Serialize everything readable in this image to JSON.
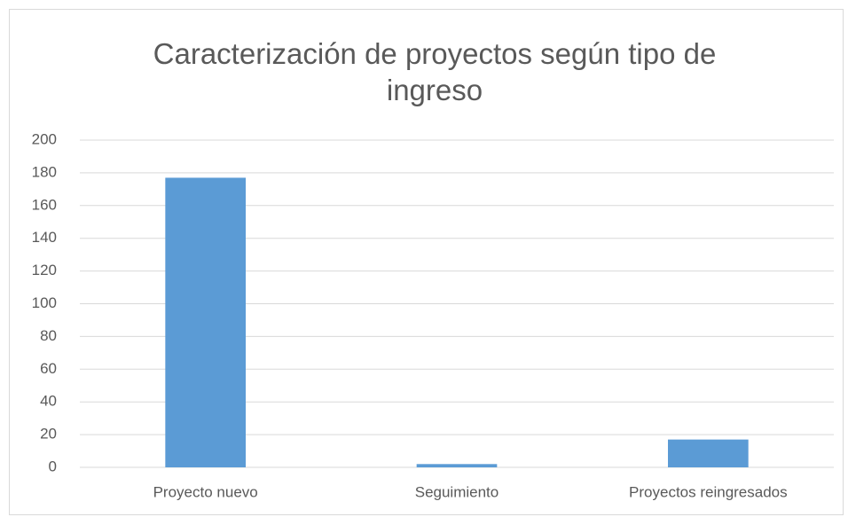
{
  "chart_data": {
    "type": "bar",
    "title": "Caracterización de proyectos según tipo de ingreso",
    "categories": [
      "Proyecto nuevo",
      "Seguimiento",
      "Proyectos reingresados"
    ],
    "values": [
      177,
      2,
      17
    ],
    "color": "#5b9bd5",
    "ylim": [
      0,
      200
    ],
    "yticks": [
      0,
      20,
      40,
      60,
      80,
      100,
      120,
      140,
      160,
      180,
      200
    ],
    "grid": true
  }
}
